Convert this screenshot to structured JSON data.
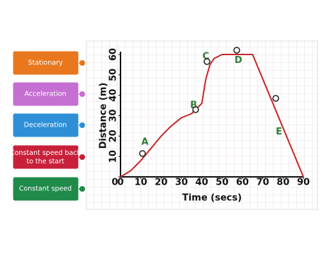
{
  "labels": [
    "Stationary",
    "Acceleration",
    "Deceleration",
    "Constant speed back to the start",
    "Constant speed"
  ],
  "chart_data": {
    "type": "line",
    "xlabel": "Time (secs)",
    "ylabel": "Distance (m)",
    "x": [
      0,
      5,
      10,
      15,
      20,
      25,
      30,
      35,
      40,
      42,
      44,
      46,
      50,
      55,
      65,
      90
    ],
    "series": [
      {
        "color": "#c62828",
        "values": [
          0,
          3,
          8,
          14,
          20,
          25,
          29,
          31,
          36,
          48,
          55,
          58,
          60,
          60,
          60,
          0
        ]
      }
    ],
    "xlim": [
      0,
      90
    ],
    "xticks": [
      0,
      10,
      20,
      30,
      40,
      50,
      60,
      70,
      80,
      90
    ],
    "ylim": [
      0,
      60
    ],
    "yticks": [
      0,
      10,
      20,
      30,
      40,
      50,
      60
    ],
    "annotations": [
      {
        "text": "A",
        "x": 12,
        "y": 17
      },
      {
        "text": "B",
        "x": 36,
        "y": 35
      },
      {
        "text": "C",
        "x": 42,
        "y": 59
      },
      {
        "text": "D",
        "x": 58,
        "y": 57
      },
      {
        "text": "E",
        "x": 78,
        "y": 22
      }
    ]
  }
}
